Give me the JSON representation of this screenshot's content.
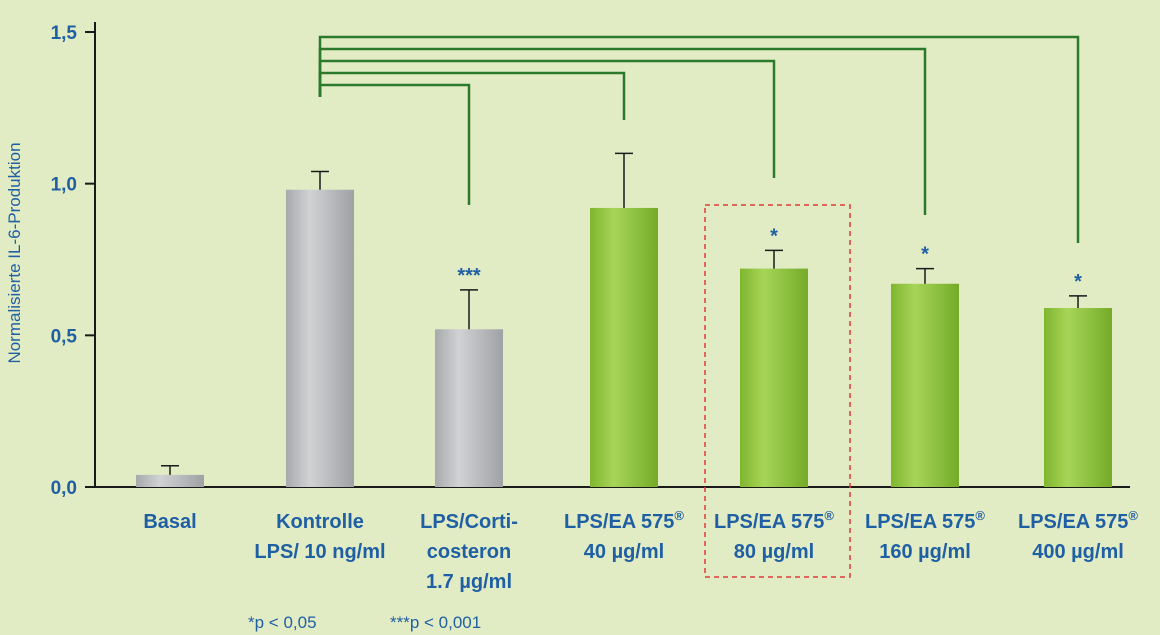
{
  "chart_data": {
    "type": "bar",
    "ylabel": "Normalisierte IL-6-Produktion",
    "xlabel": "",
    "ylim": [
      0,
      1.5
    ],
    "yticks": [
      "0,0",
      "0,5",
      "1,0",
      "1,5"
    ],
    "categories": [
      [
        "Basal"
      ],
      [
        "Kontrolle",
        "LPS/ 10 ng/ml"
      ],
      [
        "LPS/Corti-",
        "costeron",
        "1.7 µg/ml"
      ],
      [
        "LPS/EA 575®",
        "40 µg/ml"
      ],
      [
        "LPS/EA 575®",
        "80 µg/ml"
      ],
      [
        "LPS/EA 575®",
        "160 µg/ml"
      ],
      [
        "LPS/EA 575®",
        "400 µg/ml"
      ]
    ],
    "values": [
      0.04,
      0.98,
      0.52,
      0.92,
      0.72,
      0.67,
      0.59
    ],
    "errors": [
      0.03,
      0.06,
      0.13,
      0.18,
      0.06,
      0.05,
      0.04
    ],
    "significance": [
      "",
      "",
      "***",
      "",
      "*",
      "*",
      "*"
    ],
    "colors": [
      "#b4b6b9",
      "#b4b6b9",
      "#b4b6b9",
      "#8cc33a",
      "#8cc33a",
      "#8cc33a",
      "#8cc33a"
    ],
    "highlighted_index": 4,
    "comparisons": [
      {
        "from": 1,
        "to": 2
      },
      {
        "from": 1,
        "to": 3
      },
      {
        "from": 1,
        "to": 4
      },
      {
        "from": 1,
        "to": 5
      },
      {
        "from": 1,
        "to": 6
      }
    ],
    "footnotes": [
      "*p < 0,05",
      "***p < 0,001"
    ],
    "grid": false,
    "legend": "none"
  }
}
